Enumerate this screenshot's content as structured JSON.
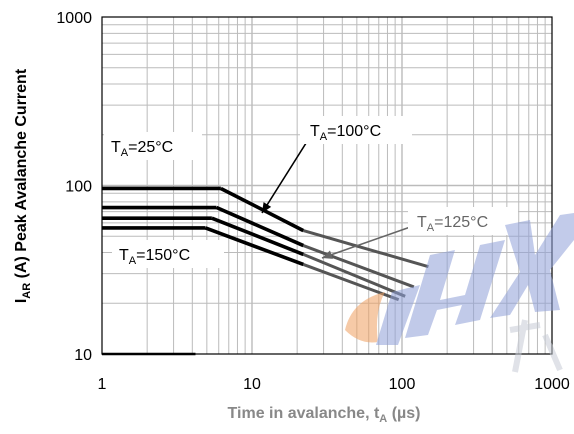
{
  "chart_data": {
    "type": "line",
    "title": "",
    "xlabel": "Time in avalanche, t",
    "xlabel_sub": "A",
    "xlabel_unit": " (µs)",
    "ylabel": "I",
    "ylabel_sub": "AR",
    "ylabel_rest": " (A) Peak Avalanche Current",
    "x_scale": "log",
    "y_scale": "log",
    "xlim": [
      1,
      1000
    ],
    "ylim": [
      10,
      1000
    ],
    "x_ticks": [
      1,
      10,
      100,
      1000
    ],
    "x_tick_labels": [
      "1",
      "10",
      "100",
      "1000"
    ],
    "y_ticks": [
      10,
      100,
      1000
    ],
    "y_tick_labels": [
      "10",
      "100",
      "1000"
    ],
    "grid": true,
    "series": [
      {
        "name": "TA=25°C",
        "x": [
          1,
          6.2,
          22,
          150
        ],
        "y": [
          96,
          96,
          54,
          33
        ]
      },
      {
        "name": "TA=100°C",
        "x": [
          1,
          5.8,
          22,
          120
        ],
        "y": [
          74,
          74,
          44,
          25
        ]
      },
      {
        "name": "TA=125°C",
        "x": [
          1,
          5.4,
          22,
          105
        ],
        "y": [
          64,
          64,
          39,
          22
        ]
      },
      {
        "name": "TA=150°C",
        "x": [
          1,
          4.9,
          22,
          95
        ],
        "y": [
          56,
          56,
          34,
          21
        ]
      }
    ],
    "annotations": [
      {
        "base": "T",
        "sub": "A",
        "rest": "=25°C"
      },
      {
        "base": "T",
        "sub": "A",
        "rest": "=100°C"
      },
      {
        "base": "T",
        "sub": "A",
        "rest": "=125°C"
      },
      {
        "base": "T",
        "sub": "A",
        "rest": "=150°C"
      }
    ],
    "colors": {
      "thick": "#000000",
      "thin": "#555555",
      "grid": "#bbbbbb",
      "arrow": "#666666"
    }
  }
}
